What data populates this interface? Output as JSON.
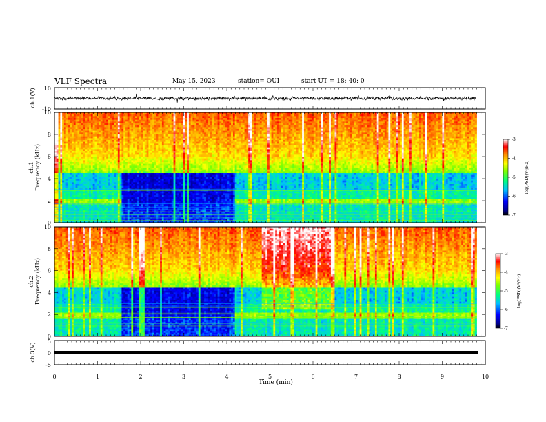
{
  "header": {
    "title": "VLF Spectra",
    "date": "May 15, 2023",
    "station": "station= OUI",
    "start": "start  UT  =   18: 40: 0"
  },
  "chart_data": [
    {
      "type": "line",
      "panel": "ch1-waveform",
      "ylabel": "ch.1(V)",
      "ylim": [
        -10,
        10
      ],
      "yticks": [
        "10",
        "-10"
      ],
      "xlim": [
        0,
        10
      ],
      "description_values": {
        "baseline_v": 0,
        "typical_amplitude_v": 1.5
      }
    },
    {
      "type": "heatmap",
      "panel": "ch1-spectrogram",
      "ylabel": "ch.1\nFrequency (kHz)",
      "ylabel_lines": [
        "ch.1",
        "Frequency (kHz)"
      ],
      "ylim": [
        0,
        10
      ],
      "yticks": [
        "0",
        "2",
        "4",
        "6",
        "8",
        "10"
      ],
      "xlim": [
        0,
        9.8
      ],
      "colorbar": {
        "label": "log(PSD)(V²/Hz)",
        "range": [
          -7,
          -3
        ],
        "ticks": [
          "-3",
          "-4",
          "-5",
          "-6",
          "-7"
        ]
      },
      "quiet_interval_min": [
        1.55,
        4.2
      ]
    },
    {
      "type": "heatmap",
      "panel": "ch2-spectrogram",
      "ylabel_lines": [
        "ch.2",
        "Frequency (kHz)"
      ],
      "ylim": [
        0,
        10
      ],
      "yticks": [
        "0",
        "2",
        "4",
        "6",
        "8",
        "10"
      ],
      "xlim": [
        0,
        9.8
      ],
      "colorbar": {
        "label": "log(PSD)(V²/Hz)",
        "range": [
          -7,
          -3
        ],
        "ticks": [
          "-3",
          "-4",
          "-5",
          "-6",
          "-7"
        ]
      },
      "quiet_interval_min": [
        1.55,
        4.2
      ],
      "burst_interval_min": [
        4.8,
        6.5
      ]
    },
    {
      "type": "line",
      "panel": "ch3-waveform",
      "ylabel": "ch.3(V)",
      "ylim": [
        -5,
        5
      ],
      "yticks": [
        "5",
        "0",
        "-5"
      ],
      "xlim": [
        0,
        10
      ],
      "description_values": {
        "baseline_v": -1
      }
    }
  ],
  "xaxis": {
    "label": "Time  (min)",
    "ticks": [
      "0",
      "1",
      "2",
      "3",
      "4",
      "5",
      "6",
      "7",
      "8",
      "9",
      "10"
    ],
    "range": [
      0,
      10
    ]
  },
  "colormap": [
    "#00008b",
    "#0000ff",
    "#00bfff",
    "#00ff7f",
    "#7fff00",
    "#ffff00",
    "#ff8c00",
    "#ff0000",
    "#ffffff"
  ]
}
